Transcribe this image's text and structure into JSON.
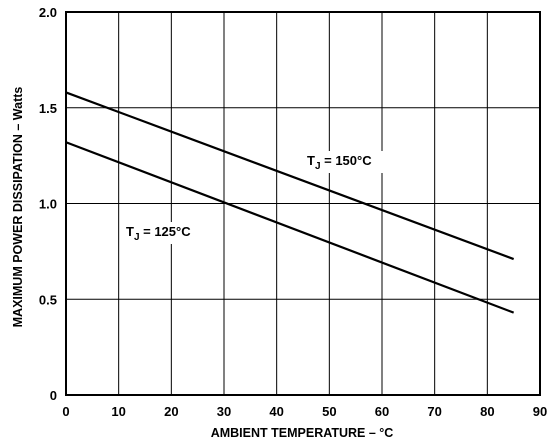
{
  "chart_data": {
    "type": "line",
    "xlabel": "AMBIENT TEMPERATURE – °C",
    "ylabel": "MAXIMUM POWER DISSIPATION – Watts",
    "xlim": [
      0,
      90
    ],
    "ylim": [
      0,
      2.0
    ],
    "x_ticks": [
      "0",
      "10",
      "20",
      "30",
      "40",
      "50",
      "60",
      "70",
      "80",
      "90"
    ],
    "y_ticks": [
      "0",
      "0.5",
      "1.0",
      "1.5",
      "2.0"
    ],
    "grid": true,
    "series": [
      {
        "name": "T_J = 150°C",
        "label_main": "T",
        "label_sub": "J",
        "label_rest": " = 150°C",
        "x": [
          0,
          85
        ],
        "y": [
          1.58,
          0.71
        ]
      },
      {
        "name": "T_J = 125°C",
        "label_main": "T",
        "label_sub": "J",
        "label_rest": " = 125°C",
        "x": [
          0,
          85
        ],
        "y": [
          1.32,
          0.43
        ]
      }
    ]
  }
}
